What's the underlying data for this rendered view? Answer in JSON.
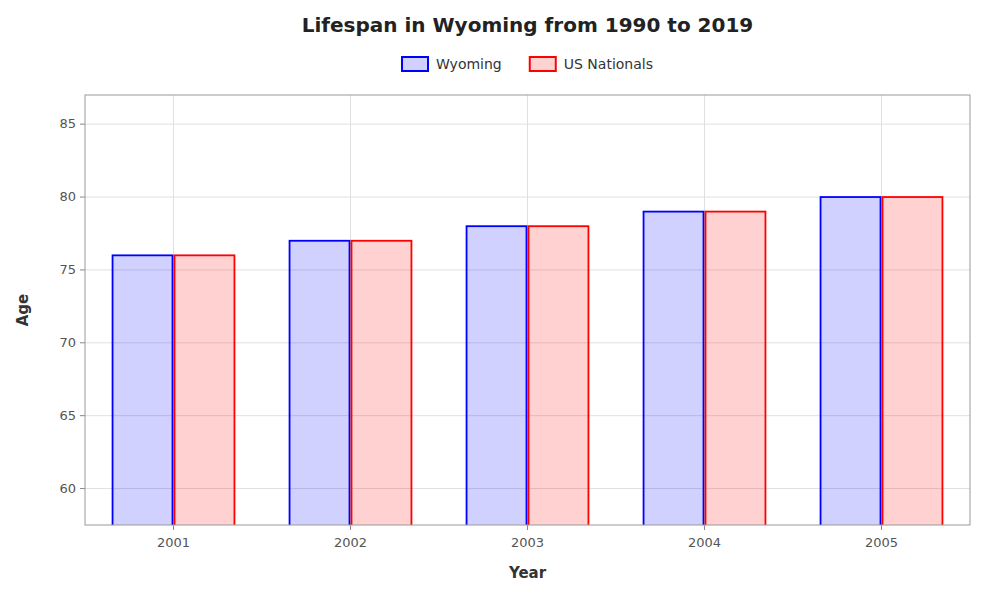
{
  "chart_data": {
    "type": "bar",
    "title": "Lifespan in Wyoming from 1990 to 2019",
    "x_label": "Year",
    "y_label": "Age",
    "categories": [
      "2001",
      "2002",
      "2003",
      "2004",
      "2005"
    ],
    "series": [
      {
        "name": "Wyoming",
        "color": "#0000ff",
        "values": [
          76,
          77,
          78,
          79,
          80
        ]
      },
      {
        "name": "US Nationals",
        "color": "#ff0000",
        "values": [
          76,
          77,
          78,
          79,
          80
        ]
      }
    ],
    "ylim": [
      57.5,
      87
    ],
    "yticks": [
      60,
      65,
      70,
      75,
      80,
      85
    ],
    "grid": true,
    "legend": "top"
  }
}
